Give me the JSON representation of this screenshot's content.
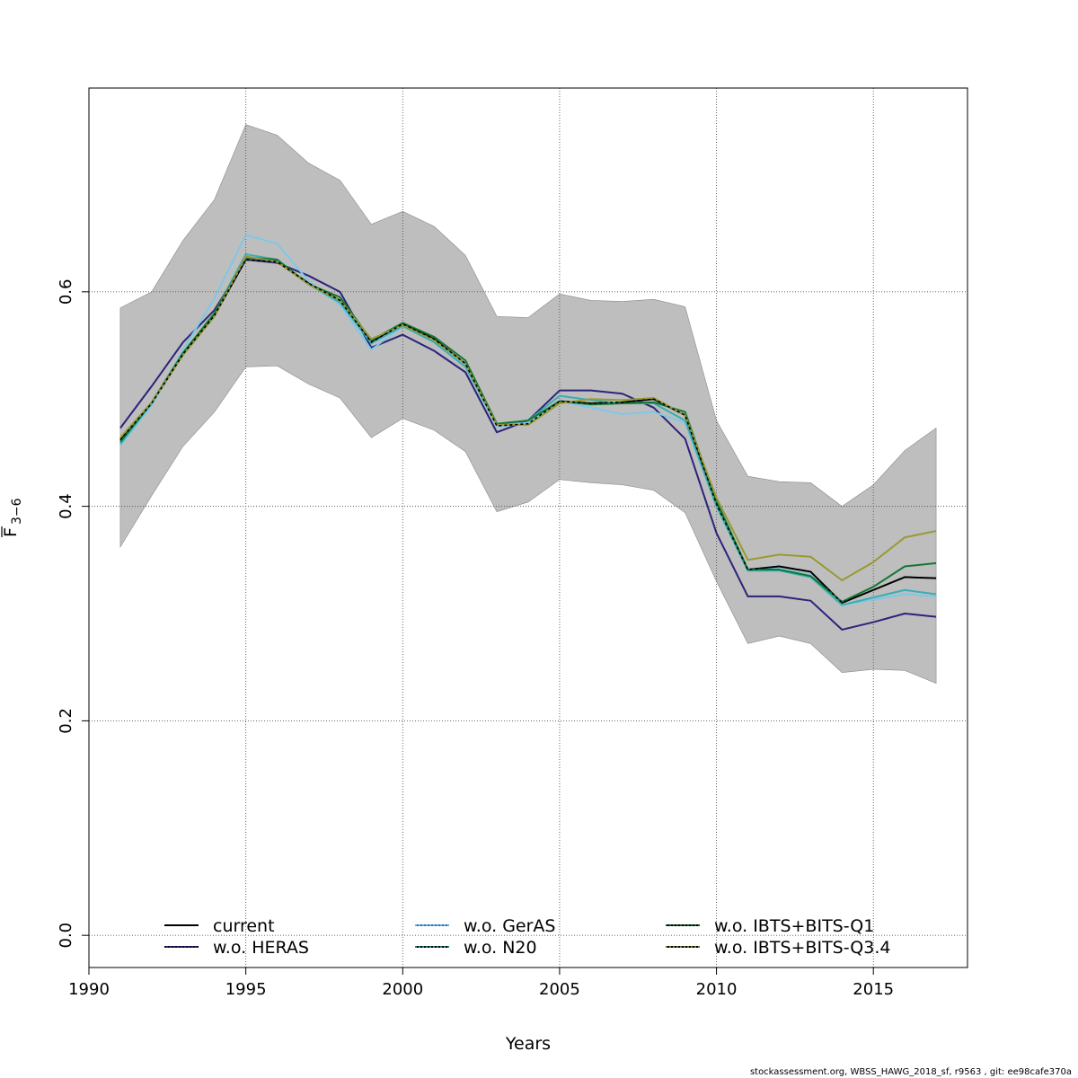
{
  "chart_data": {
    "type": "line",
    "title": "",
    "xlabel": "Years",
    "ylabel": "F 3-6",
    "ylabel_main": "F",
    "ylabel_sub": "3−6",
    "xlim": [
      1990,
      2018
    ],
    "ylim": [
      -0.03,
      0.79
    ],
    "x_ticks": [
      1990,
      1995,
      2000,
      2005,
      2010,
      2015
    ],
    "x_tick_labels": [
      "1990",
      "1995",
      "2000",
      "2005",
      "2010",
      "2015"
    ],
    "y_ticks": [
      0.0,
      0.2,
      0.4,
      0.6
    ],
    "y_tick_labels": [
      "0.0",
      "0.2",
      "0.4",
      "0.6"
    ],
    "grid": true,
    "legend_position": "bottom",
    "x": [
      1991,
      1992,
      1993,
      1994,
      1995,
      1996,
      1997,
      1998,
      1999,
      2000,
      2001,
      2002,
      2003,
      2004,
      2005,
      2006,
      2007,
      2008,
      2009,
      2010,
      2011,
      2012,
      2013,
      2014,
      2015,
      2016,
      2017
    ],
    "band": {
      "color": "#bebebe",
      "upper": [
        0.585,
        0.6,
        0.648,
        0.686,
        0.756,
        0.746,
        0.72,
        0.704,
        0.663,
        0.675,
        0.661,
        0.634,
        0.577,
        0.576,
        0.598,
        0.592,
        0.591,
        0.593,
        0.586,
        0.48,
        0.428,
        0.423,
        0.422,
        0.4,
        0.42,
        0.452,
        0.473
      ],
      "lower": [
        0.362,
        0.41,
        0.456,
        0.488,
        0.53,
        0.531,
        0.514,
        0.501,
        0.464,
        0.482,
        0.471,
        0.451,
        0.395,
        0.404,
        0.425,
        0.422,
        0.42,
        0.415,
        0.394,
        0.33,
        0.272,
        0.279,
        0.272,
        0.245,
        0.248,
        0.247,
        0.235
      ]
    },
    "series": [
      {
        "name": "current",
        "color": "#000000",
        "dash": "",
        "values": [
          0.462,
          0.496,
          0.542,
          0.578,
          0.63,
          0.628,
          0.608,
          0.592,
          0.553,
          0.57,
          0.556,
          0.533,
          0.475,
          0.477,
          0.498,
          0.496,
          0.497,
          0.5,
          0.485,
          0.402,
          0.341,
          0.344,
          0.339,
          0.31,
          0.322,
          0.334,
          0.333
        ]
      },
      {
        "name": "w.o. HERAS",
        "color": "#2a237b",
        "dash": "",
        "values": [
          0.473,
          0.512,
          0.553,
          0.583,
          0.63,
          0.627,
          0.615,
          0.6,
          0.548,
          0.56,
          0.545,
          0.525,
          0.469,
          0.48,
          0.508,
          0.508,
          0.505,
          0.492,
          0.463,
          0.375,
          0.316,
          0.316,
          0.312,
          0.285,
          0.292,
          0.3,
          0.297
        ]
      },
      {
        "name": "w.o. GerAS",
        "color": "#7ec8e6",
        "dash": "",
        "values": [
          0.457,
          0.494,
          0.546,
          0.594,
          0.653,
          0.645,
          0.61,
          0.588,
          0.546,
          0.568,
          0.553,
          0.53,
          0.474,
          0.478,
          0.498,
          0.492,
          0.486,
          0.488,
          0.478,
          0.4,
          0.34,
          0.342,
          0.336,
          0.308,
          0.313,
          0.318,
          0.316
        ]
      },
      {
        "name": "w.o. N20",
        "color": "#39aeb2",
        "dash": "",
        "values": [
          0.458,
          0.496,
          0.543,
          0.58,
          0.635,
          0.63,
          0.607,
          0.59,
          0.552,
          0.568,
          0.553,
          0.53,
          0.476,
          0.48,
          0.503,
          0.499,
          0.496,
          0.496,
          0.48,
          0.4,
          0.34,
          0.34,
          0.334,
          0.308,
          0.315,
          0.322,
          0.318
        ]
      },
      {
        "name": "w.o. IBTS+BITS-Q1",
        "color": "#117733",
        "dash": "",
        "values": [
          0.46,
          0.497,
          0.543,
          0.58,
          0.632,
          0.63,
          0.607,
          0.595,
          0.555,
          0.571,
          0.558,
          0.536,
          0.477,
          0.48,
          0.498,
          0.495,
          0.496,
          0.497,
          0.488,
          0.405,
          0.341,
          0.341,
          0.335,
          0.311,
          0.325,
          0.344,
          0.347
        ]
      },
      {
        "name": "w.o. IBTS+BITS-Q3.4",
        "color": "#999933",
        "dash": "",
        "values": [
          0.464,
          0.497,
          0.541,
          0.577,
          0.633,
          0.628,
          0.607,
          0.592,
          0.556,
          0.569,
          0.555,
          0.533,
          0.476,
          0.476,
          0.496,
          0.5,
          0.499,
          0.501,
          0.485,
          0.408,
          0.35,
          0.355,
          0.353,
          0.331,
          0.348,
          0.371,
          0.377
        ]
      }
    ],
    "legend_entries": [
      {
        "label": "current",
        "color": "#000000",
        "inner": ""
      },
      {
        "label": "w.o. HERAS",
        "color": "#2a237b",
        "inner": "#000000"
      },
      {
        "label": "w.o. GerAS",
        "color": "#2b6fc2",
        "inner": "#7ec8e6"
      },
      {
        "label": "w.o. N20",
        "color": "#000000",
        "inner": "#39aeb2"
      },
      {
        "label": "w.o. IBTS+BITS-Q1",
        "color": "#000000",
        "inner": "#117733"
      },
      {
        "label": "w.o. IBTS+BITS-Q3.4",
        "color": "#000000",
        "inner": "#999933"
      }
    ],
    "current_overlay": {
      "color": "#000000",
      "dash": "3 3"
    }
  },
  "footer": "stockassessment.org, WBSS_HAWG_2018_sf, r9563 , git: ee98cafe370a"
}
